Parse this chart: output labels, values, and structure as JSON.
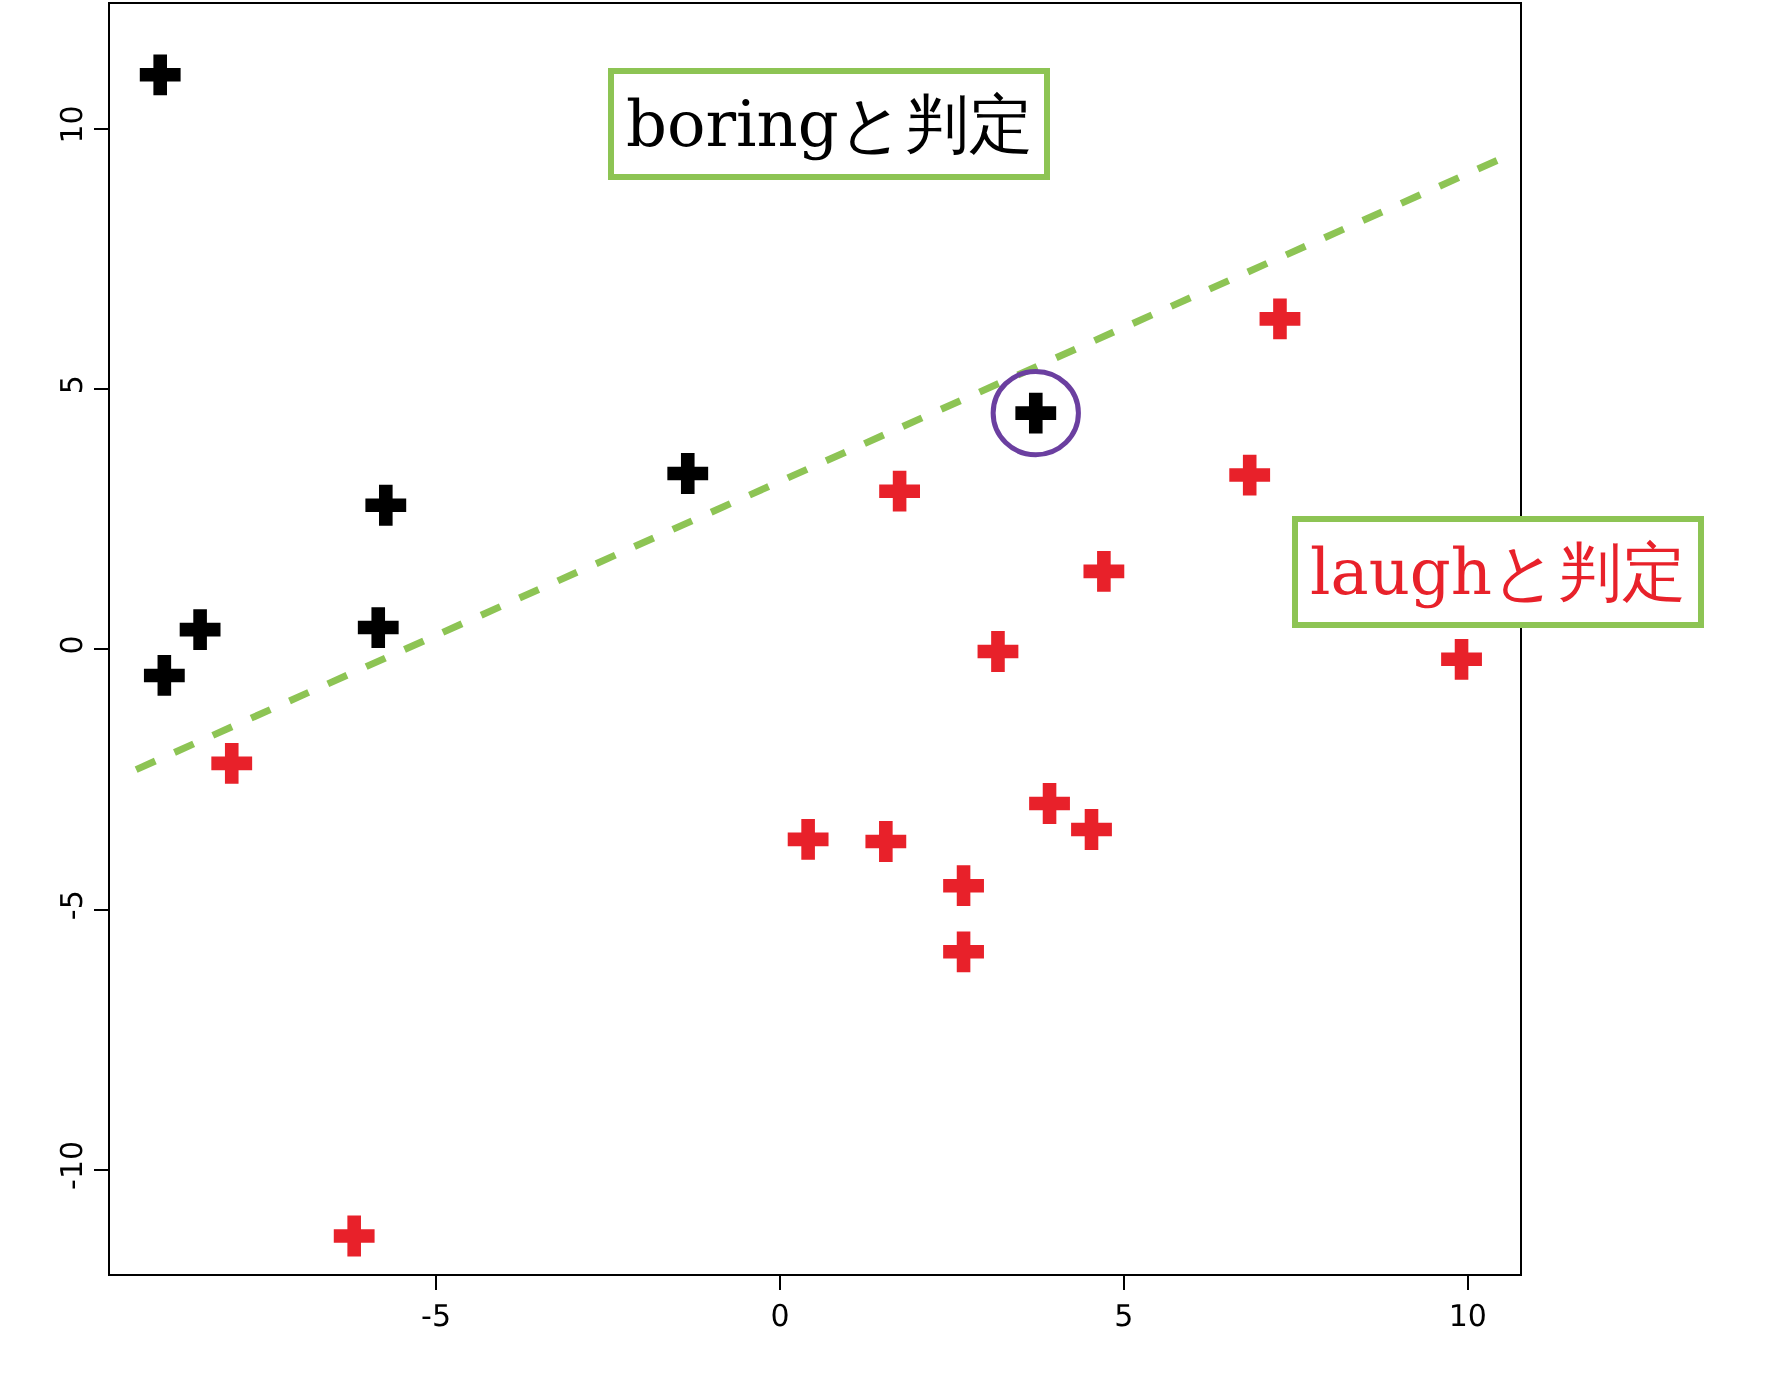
{
  "chart_data": {
    "type": "scatter",
    "marker": "cross",
    "grid": false,
    "legend": false,
    "xlim": [
      -9.74,
      10.76
    ],
    "ylim": [
      -12.0,
      12.4
    ],
    "xticks": [
      -5,
      0,
      5,
      10
    ],
    "yticks": [
      -10,
      -5,
      0,
      5,
      10
    ],
    "series": [
      {
        "color": "#000000",
        "x": [
          -9.01,
          -8.95,
          -8.43,
          -5.73,
          -5.84,
          -1.34,
          3.72
        ],
        "values": [
          11.04,
          -0.5,
          0.38,
          2.77,
          0.42,
          3.38,
          4.54
        ]
      },
      {
        "color": "#e8212a",
        "x": [
          -7.97,
          -6.19,
          0.41,
          1.54,
          1.74,
          2.67,
          2.67,
          3.17,
          3.92,
          4.53,
          4.71,
          6.83,
          7.27,
          9.91
        ],
        "values": [
          -2.19,
          -11.27,
          -3.65,
          -3.69,
          3.04,
          -4.54,
          -5.81,
          -0.04,
          -2.96,
          -3.46,
          1.5,
          3.35,
          6.35,
          -0.19
        ]
      },
      {
        "type": "line",
        "marker": "none",
        "line_style": "dashed",
        "color": "#8dc454",
        "x": [
          -9.36,
          10.47
        ],
        "values": [
          -2.31,
          9.42
        ]
      }
    ],
    "annotations": [
      "boringと判定",
      "laughと判定"
    ]
  }
}
